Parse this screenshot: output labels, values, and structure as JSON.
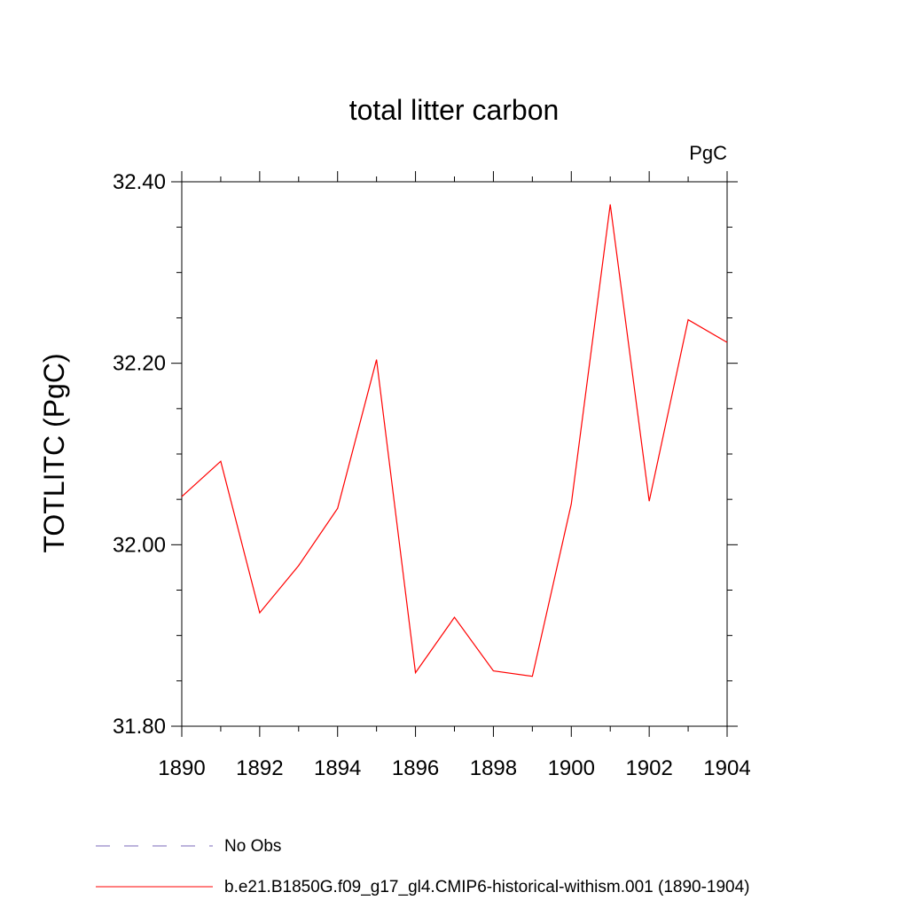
{
  "chart_data": {
    "type": "line",
    "title": "total litter carbon",
    "units": "PgC",
    "ylabel": "TOTLITC  (PgC)",
    "xlabel": "",
    "xlim": [
      1890,
      1904
    ],
    "ylim": [
      31.8,
      32.4
    ],
    "x_ticks": [
      1890,
      1892,
      1894,
      1896,
      1898,
      1900,
      1902,
      1904
    ],
    "x_tick_labels": [
      "1890",
      "1892",
      "1894",
      "1896",
      "1898",
      "1900",
      "1902",
      "1904"
    ],
    "y_ticks": [
      31.8,
      32.0,
      32.2,
      32.4
    ],
    "y_tick_labels": [
      "31.80",
      "32.00",
      "32.20",
      "32.40"
    ],
    "grid": false,
    "legend_position": "bottom",
    "series": [
      {
        "name": "b.e21.B1850G.f09_g17_gl4.CMIP6-historical-withism.001 (1890-1904)",
        "color": "#ff0000",
        "x": [
          1890,
          1891,
          1892,
          1893,
          1894,
          1895,
          1896,
          1897,
          1898,
          1899,
          1900,
          1901,
          1902,
          1903,
          1904
        ],
        "values": [
          32.053,
          32.092,
          31.925,
          31.977,
          32.04,
          32.204,
          31.859,
          31.92,
          31.861,
          31.855,
          32.045,
          32.375,
          32.048,
          32.248,
          32.223
        ]
      }
    ],
    "legend": [
      {
        "label": "No Obs",
        "color": "#7b68b8",
        "style": "dashed"
      },
      {
        "label": "b.e21.B1850G.f09_g17_gl4.CMIP6-historical-withism.001 (1890-1904)",
        "color": "#ff0000",
        "style": "solid"
      }
    ]
  }
}
